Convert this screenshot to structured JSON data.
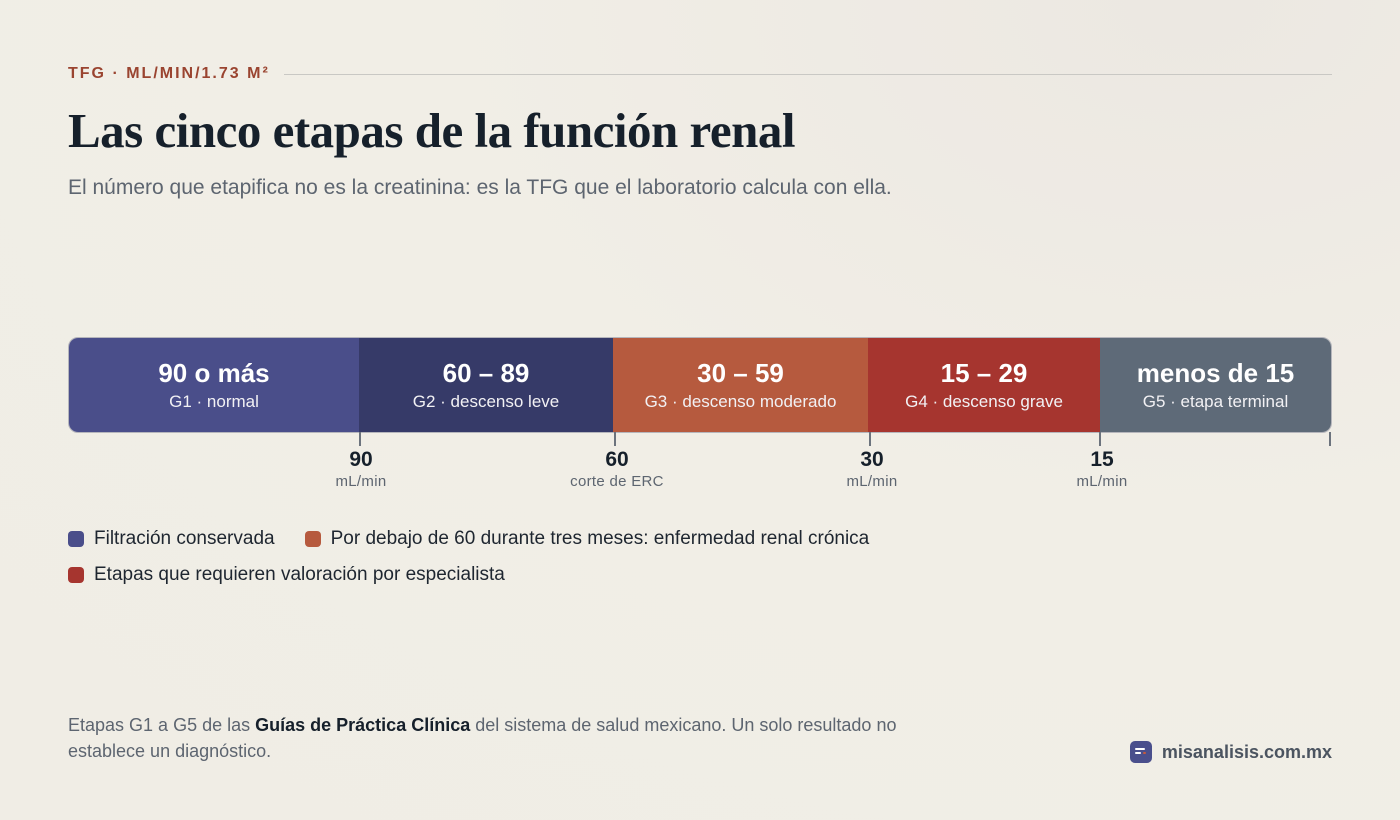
{
  "header": {
    "eyebrow": "TFG · ML/MIN/1.73 M²",
    "title": "Las cinco etapas de la función renal",
    "subtitle": "El número que etapifica no es la creatinina: es la TFG que el laboratorio calcula con ella."
  },
  "stages": [
    {
      "range": "90 o más",
      "label": "G1 · normal",
      "color": "#4a4e8a"
    },
    {
      "range": "60 – 89",
      "label": "G2 · descenso leve",
      "color": "#363a68"
    },
    {
      "range": "30 – 59",
      "label": "G3 · descenso moderado",
      "color": "#b65a3e"
    },
    {
      "range": "15 – 29",
      "label": "G4 · descenso grave",
      "color": "#a6352f"
    },
    {
      "range": "menos de 15",
      "label": "G5 · etapa terminal",
      "color": "#5e6a78"
    }
  ],
  "ticks": [
    {
      "value": "90",
      "unit": "mL/min"
    },
    {
      "value": "60",
      "unit": "corte de ERC"
    },
    {
      "value": "30",
      "unit": "mL/min"
    },
    {
      "value": "15",
      "unit": "mL/min"
    }
  ],
  "legend": [
    {
      "text": "Filtración conservada",
      "color": "#4a4e8a"
    },
    {
      "text": "Por debajo de 60 durante tres meses: enfermedad renal crónica",
      "color": "#b65a3e"
    },
    {
      "text": "Etapas que requieren valoración por especialista",
      "color": "#a6352f"
    }
  ],
  "footnote": {
    "before": "Etapas G1 a G5 de las ",
    "bold": "Guías de Práctica Clínica",
    "after": " del sistema de salud mexicano. Un solo resultado no establece un diagnóstico."
  },
  "brand": {
    "icon": "report-icon",
    "name": "misanalisis.com.mx"
  }
}
